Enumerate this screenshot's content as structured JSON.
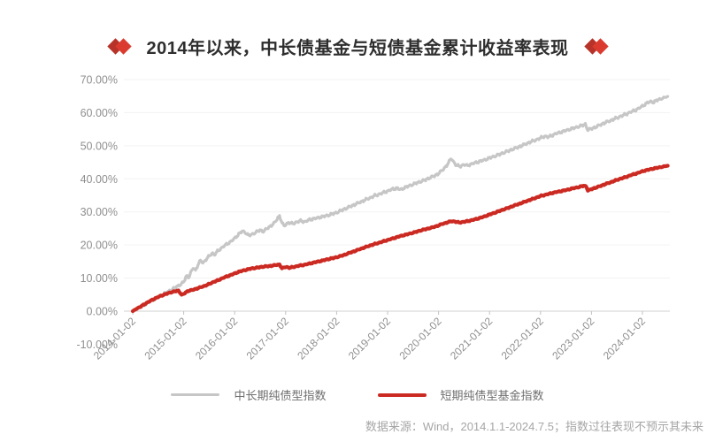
{
  "title": {
    "text": "2014年以来，中长债基金与短债基金累计收益率表现"
  },
  "footer": {
    "source_note": "数据来源：Wind，2014.1.1-2024.7.5；指数过往表现不预示其未来"
  },
  "colors": {
    "diamond_dark": "#b73229",
    "diamond_bright": "#db3b2e",
    "gray_line": "#c6c6c6",
    "red_line": "#cb2a22",
    "axis_label": "#8f8f8f",
    "axis_line": "#d9d9d9",
    "gridline": "#f3f3f3",
    "title_text": "#2e2e2e",
    "footer_text": "#a6a6a6"
  },
  "chart_data": {
    "type": "line",
    "title": "2014年以来，中长债基金与短债基金累计收益率表现",
    "xlabel": "",
    "ylabel": "",
    "ylim": [
      -10,
      70
    ],
    "xlim_years": [
      2014.0,
      2024.52
    ],
    "grid": "faint-horizontal",
    "legend_position": "bottom",
    "y_tick_labels": [
      "70.00%",
      "60.00%",
      "50.00%",
      "40.00%",
      "30.00%",
      "20.00%",
      "10.00%",
      "0.00%",
      "-10.00%"
    ],
    "y_tick_values": [
      70,
      60,
      50,
      40,
      30,
      20,
      10,
      0,
      -10
    ],
    "x_tick_labels": [
      "2014-01-02",
      "2015-01-02",
      "2016-01-02",
      "2017-01-02",
      "2018-01-02",
      "2019-01-02",
      "2020-01-02",
      "2021-01-02",
      "2022-01-02",
      "2023-01-02",
      "2024-01-02"
    ],
    "x_tick_years": [
      2014,
      2015,
      2016,
      2017,
      2018,
      2019,
      2020,
      2021,
      2022,
      2023,
      2024
    ],
    "series": [
      {
        "name": "中长期纯债型指数",
        "color": "#c6c6c6",
        "stroke_width": 3.2,
        "points": [
          [
            2014.0,
            0.0
          ],
          [
            2014.08,
            0.7
          ],
          [
            2014.17,
            1.4
          ],
          [
            2014.25,
            2.1
          ],
          [
            2014.33,
            2.9
          ],
          [
            2014.42,
            3.6
          ],
          [
            2014.5,
            4.3
          ],
          [
            2014.58,
            5.0
          ],
          [
            2014.67,
            5.7
          ],
          [
            2014.75,
            6.4
          ],
          [
            2014.83,
            7.1
          ],
          [
            2014.92,
            7.9
          ],
          [
            2015.0,
            8.8
          ],
          [
            2015.06,
            10.8
          ],
          [
            2015.1,
            10.2
          ],
          [
            2015.15,
            12.0
          ],
          [
            2015.19,
            13.2
          ],
          [
            2015.23,
            12.3
          ],
          [
            2015.29,
            14.3
          ],
          [
            2015.33,
            15.3
          ],
          [
            2015.38,
            14.6
          ],
          [
            2015.46,
            16.0
          ],
          [
            2015.5,
            16.6
          ],
          [
            2015.56,
            17.6
          ],
          [
            2015.6,
            17.0
          ],
          [
            2015.67,
            18.2
          ],
          [
            2015.75,
            19.2
          ],
          [
            2015.83,
            20.1
          ],
          [
            2015.92,
            21.0
          ],
          [
            2016.0,
            22.0
          ],
          [
            2016.08,
            23.3
          ],
          [
            2016.15,
            24.2
          ],
          [
            2016.21,
            23.8
          ],
          [
            2016.27,
            22.9
          ],
          [
            2016.33,
            23.1
          ],
          [
            2016.42,
            23.9
          ],
          [
            2016.5,
            24.5
          ],
          [
            2016.56,
            24.1
          ],
          [
            2016.63,
            24.9
          ],
          [
            2016.71,
            25.8
          ],
          [
            2016.79,
            26.8
          ],
          [
            2016.85,
            28.3
          ],
          [
            2016.88,
            28.8
          ],
          [
            2016.93,
            26.6
          ],
          [
            2016.97,
            25.7
          ],
          [
            2017.0,
            26.2
          ],
          [
            2017.06,
            26.8
          ],
          [
            2017.13,
            26.4
          ],
          [
            2017.21,
            26.9
          ],
          [
            2017.29,
            27.3
          ],
          [
            2017.38,
            27.0
          ],
          [
            2017.46,
            27.6
          ],
          [
            2017.54,
            27.9
          ],
          [
            2017.63,
            28.2
          ],
          [
            2017.71,
            28.5
          ],
          [
            2017.79,
            28.8
          ],
          [
            2017.88,
            29.2
          ],
          [
            2018.0,
            29.8
          ],
          [
            2018.13,
            30.7
          ],
          [
            2018.25,
            31.5
          ],
          [
            2018.38,
            32.4
          ],
          [
            2018.5,
            33.2
          ],
          [
            2018.63,
            34.1
          ],
          [
            2018.75,
            34.9
          ],
          [
            2018.88,
            35.6
          ],
          [
            2019.0,
            36.3
          ],
          [
            2019.1,
            36.9
          ],
          [
            2019.19,
            37.2
          ],
          [
            2019.25,
            36.7
          ],
          [
            2019.33,
            37.3
          ],
          [
            2019.46,
            38.1
          ],
          [
            2019.58,
            38.8
          ],
          [
            2019.71,
            39.5
          ],
          [
            2019.83,
            40.3
          ],
          [
            2019.92,
            40.9
          ],
          [
            2020.0,
            41.6
          ],
          [
            2020.08,
            42.7
          ],
          [
            2020.17,
            44.2
          ],
          [
            2020.25,
            46.3
          ],
          [
            2020.29,
            45.2
          ],
          [
            2020.35,
            44.0
          ],
          [
            2020.42,
            43.8
          ],
          [
            2020.5,
            44.3
          ],
          [
            2020.56,
            44.0
          ],
          [
            2020.63,
            44.4
          ],
          [
            2020.75,
            45.0
          ],
          [
            2020.88,
            45.6
          ],
          [
            2021.0,
            46.3
          ],
          [
            2021.13,
            47.0
          ],
          [
            2021.25,
            47.7
          ],
          [
            2021.38,
            48.5
          ],
          [
            2021.5,
            49.2
          ],
          [
            2021.63,
            50.0
          ],
          [
            2021.75,
            50.8
          ],
          [
            2021.88,
            51.6
          ],
          [
            2022.0,
            52.3
          ],
          [
            2022.08,
            52.9
          ],
          [
            2022.15,
            52.6
          ],
          [
            2022.25,
            53.3
          ],
          [
            2022.33,
            53.8
          ],
          [
            2022.46,
            54.4
          ],
          [
            2022.58,
            55.0
          ],
          [
            2022.71,
            55.6
          ],
          [
            2022.83,
            56.2
          ],
          [
            2022.88,
            56.5
          ],
          [
            2022.93,
            54.7
          ],
          [
            2023.0,
            55.2
          ],
          [
            2023.08,
            55.6
          ],
          [
            2023.17,
            56.3
          ],
          [
            2023.29,
            57.1
          ],
          [
            2023.42,
            57.9
          ],
          [
            2023.54,
            58.7
          ],
          [
            2023.67,
            59.5
          ],
          [
            2023.79,
            60.3
          ],
          [
            2023.92,
            61.2
          ],
          [
            2024.0,
            62.0
          ],
          [
            2024.1,
            63.0
          ],
          [
            2024.17,
            63.4
          ],
          [
            2024.22,
            63.1
          ],
          [
            2024.29,
            63.8
          ],
          [
            2024.38,
            64.3
          ],
          [
            2024.45,
            64.6
          ],
          [
            2024.51,
            65.0
          ]
        ]
      },
      {
        "name": "短期纯债型基金指数",
        "color": "#cb2a22",
        "stroke_width": 4.2,
        "points": [
          [
            2014.0,
            0.0
          ],
          [
            2014.08,
            0.8
          ],
          [
            2014.17,
            1.5
          ],
          [
            2014.25,
            2.3
          ],
          [
            2014.33,
            3.0
          ],
          [
            2014.42,
            3.7
          ],
          [
            2014.5,
            4.3
          ],
          [
            2014.58,
            4.8
          ],
          [
            2014.67,
            5.3
          ],
          [
            2014.75,
            5.7
          ],
          [
            2014.83,
            6.0
          ],
          [
            2014.9,
            6.2
          ],
          [
            2014.96,
            4.9
          ],
          [
            2015.0,
            5.2
          ],
          [
            2015.08,
            6.1
          ],
          [
            2015.17,
            6.4
          ],
          [
            2015.25,
            6.8
          ],
          [
            2015.33,
            7.2
          ],
          [
            2015.42,
            7.7
          ],
          [
            2015.5,
            8.2
          ],
          [
            2015.58,
            8.8
          ],
          [
            2015.67,
            9.3
          ],
          [
            2015.75,
            9.9
          ],
          [
            2015.83,
            10.4
          ],
          [
            2015.92,
            10.9
          ],
          [
            2016.0,
            11.4
          ],
          [
            2016.08,
            11.9
          ],
          [
            2016.17,
            12.3
          ],
          [
            2016.25,
            12.6
          ],
          [
            2016.33,
            12.9
          ],
          [
            2016.42,
            13.1
          ],
          [
            2016.5,
            13.3
          ],
          [
            2016.58,
            13.5
          ],
          [
            2016.67,
            13.6
          ],
          [
            2016.75,
            13.8
          ],
          [
            2016.83,
            14.0
          ],
          [
            2016.88,
            14.1
          ],
          [
            2016.93,
            12.9
          ],
          [
            2016.97,
            13.2
          ],
          [
            2017.0,
            13.4
          ],
          [
            2017.08,
            13.1
          ],
          [
            2017.17,
            13.4
          ],
          [
            2017.25,
            13.7
          ],
          [
            2017.33,
            13.9
          ],
          [
            2017.42,
            14.2
          ],
          [
            2017.5,
            14.5
          ],
          [
            2017.58,
            14.8
          ],
          [
            2017.67,
            15.1
          ],
          [
            2017.75,
            15.4
          ],
          [
            2017.83,
            15.7
          ],
          [
            2017.92,
            16.0
          ],
          [
            2018.0,
            16.3
          ],
          [
            2018.13,
            16.9
          ],
          [
            2018.25,
            17.6
          ],
          [
            2018.38,
            18.3
          ],
          [
            2018.5,
            19.0
          ],
          [
            2018.63,
            19.7
          ],
          [
            2018.75,
            20.3
          ],
          [
            2018.88,
            20.9
          ],
          [
            2019.0,
            21.5
          ],
          [
            2019.13,
            22.1
          ],
          [
            2019.25,
            22.7
          ],
          [
            2019.38,
            23.2
          ],
          [
            2019.5,
            23.7
          ],
          [
            2019.63,
            24.3
          ],
          [
            2019.75,
            24.8
          ],
          [
            2019.88,
            25.3
          ],
          [
            2020.0,
            25.9
          ],
          [
            2020.08,
            26.4
          ],
          [
            2020.17,
            26.8
          ],
          [
            2020.25,
            27.2
          ],
          [
            2020.31,
            27.1
          ],
          [
            2020.4,
            26.8
          ],
          [
            2020.5,
            27.0
          ],
          [
            2020.63,
            27.4
          ],
          [
            2020.75,
            27.9
          ],
          [
            2020.88,
            28.5
          ],
          [
            2021.0,
            29.2
          ],
          [
            2021.13,
            29.9
          ],
          [
            2021.25,
            30.6
          ],
          [
            2021.38,
            31.3
          ],
          [
            2021.5,
            32.0
          ],
          [
            2021.63,
            32.7
          ],
          [
            2021.75,
            33.4
          ],
          [
            2021.88,
            34.1
          ],
          [
            2022.0,
            34.8
          ],
          [
            2022.13,
            35.3
          ],
          [
            2022.25,
            35.8
          ],
          [
            2022.38,
            36.2
          ],
          [
            2022.5,
            36.6
          ],
          [
            2022.63,
            37.1
          ],
          [
            2022.75,
            37.5
          ],
          [
            2022.85,
            37.9
          ],
          [
            2022.9,
            37.7
          ],
          [
            2022.93,
            36.4
          ],
          [
            2023.0,
            36.9
          ],
          [
            2023.08,
            37.3
          ],
          [
            2023.17,
            37.8
          ],
          [
            2023.29,
            38.5
          ],
          [
            2023.42,
            39.2
          ],
          [
            2023.54,
            39.9
          ],
          [
            2023.67,
            40.5
          ],
          [
            2023.79,
            41.2
          ],
          [
            2023.92,
            41.8
          ],
          [
            2024.0,
            42.3
          ],
          [
            2024.13,
            42.8
          ],
          [
            2024.25,
            43.2
          ],
          [
            2024.38,
            43.6
          ],
          [
            2024.51,
            44.0
          ]
        ]
      }
    ]
  }
}
